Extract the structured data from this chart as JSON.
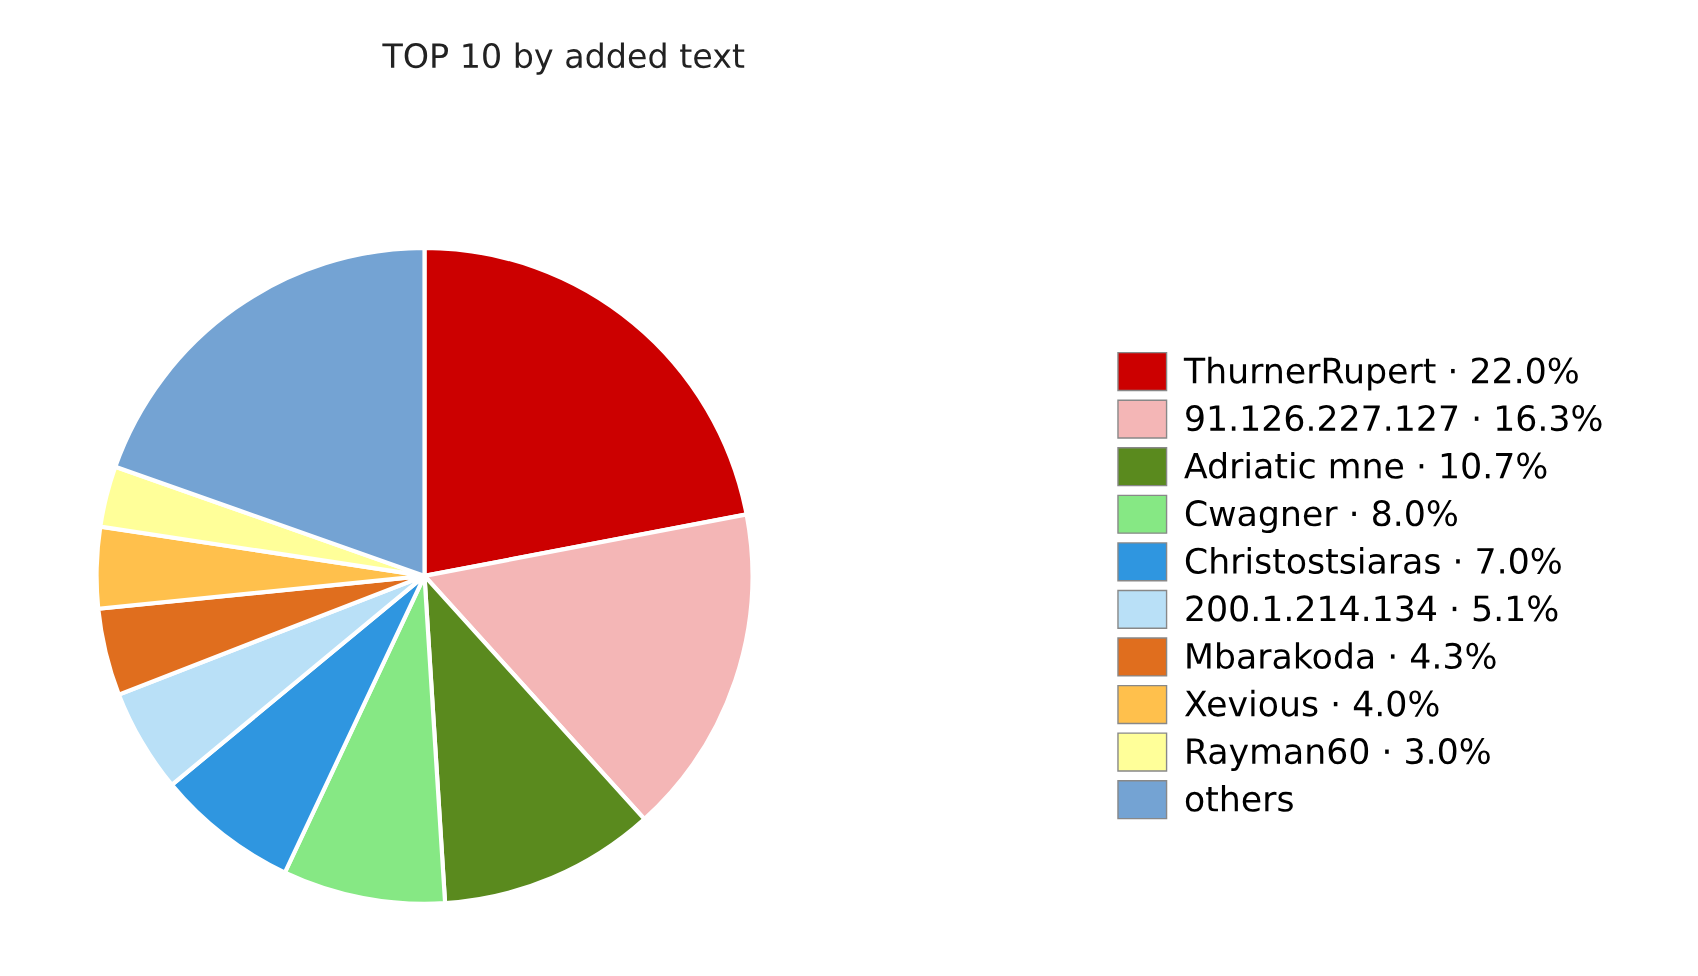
{
  "chart_data": {
    "type": "pie",
    "title": "TOP 10 by added text",
    "categories": [
      "ThurnerRupert · 22.0%",
      "91.126.227.127 · 16.3%",
      "Adriatic mne · 10.7%",
      "Cwagner · 8.0%",
      "Christostsiaras · 7.0%",
      "200.1.214.134 · 5.1%",
      "Mbarakoda · 4.3%",
      "Xevious · 4.0%",
      "Rayman60 · 3.0%",
      "others"
    ],
    "values": [
      22.0,
      16.3,
      10.7,
      8.0,
      7.0,
      5.1,
      4.3,
      4.0,
      3.0,
      19.6
    ],
    "colors": [
      "#cc0000",
      "#f4b6b6",
      "#5a8a1e",
      "#86e884",
      "#2f96e0",
      "#b9e0f7",
      "#e06e1e",
      "#ffc04c",
      "#ffff99",
      "#74a3d3"
    ],
    "legend": "right"
  }
}
